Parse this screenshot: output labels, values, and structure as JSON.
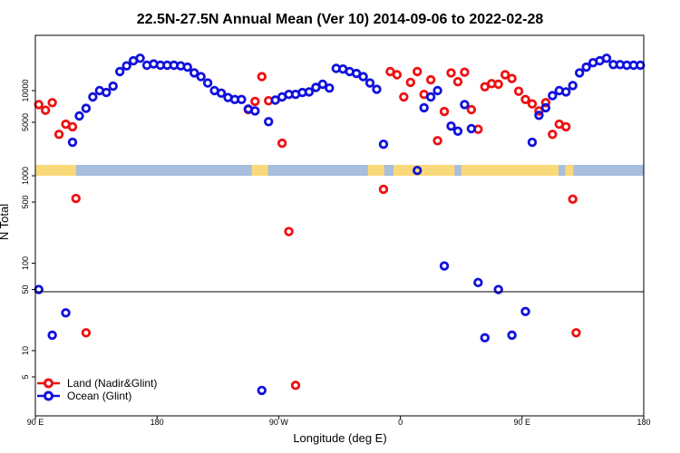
{
  "chart_data": {
    "type": "scatter",
    "title": "22.5N-27.5N Annual Mean (Ver 10)   2014-09-06 to 2022-02-28",
    "xlabel": "Longitude (deg E)",
    "ylabel": "N Total",
    "x_ticks": [
      {
        "value": 90,
        "label": "90 E"
      },
      {
        "value": 180,
        "label": "180"
      },
      {
        "value": 270,
        "label": "90 W"
      },
      {
        "value": 360,
        "label": "0"
      },
      {
        "value": 450,
        "label": "90 E"
      },
      {
        "value": 540,
        "label": "180"
      }
    ],
    "xlim": [
      90,
      540
    ],
    "y_ticks_upper": [
      "5000",
      "10000"
    ],
    "y_ticks_lower": [
      "5",
      "10",
      "50",
      "100",
      "500",
      "1000"
    ],
    "colors": {
      "land": "#ee1111",
      "ocean": "#1111dd",
      "map_ocean": "#a8bedd",
      "map_land": "#fbd97a"
    },
    "grid": false,
    "legend_position": "bottom-left",
    "series": [
      {
        "name": "Land (Nadir&Glint)",
        "color": "#ee1111",
        "points": [
          [
            92.5,
            7800
          ],
          [
            97.5,
            6900
          ],
          [
            102.5,
            8100
          ],
          [
            107.5,
            3100
          ],
          [
            112.5,
            4700
          ],
          [
            117.5,
            4300
          ],
          [
            120,
            550
          ],
          [
            127.5,
            16
          ],
          [
            247.5,
            7000
          ],
          [
            252.5,
            8300
          ],
          [
            257.5,
            12200
          ],
          [
            262.5,
            8400
          ],
          [
            272.5,
            1700
          ],
          [
            277.5,
            230
          ],
          [
            282.5,
            4
          ],
          [
            347.5,
            700
          ],
          [
            352.5,
            13000
          ],
          [
            357.5,
            12500
          ],
          [
            362.5,
            9000
          ],
          [
            367.5,
            11300
          ],
          [
            372.5,
            13000
          ],
          [
            377.5,
            9400
          ],
          [
            382.5,
            11700
          ],
          [
            387.5,
            2100
          ],
          [
            392.5,
            6700
          ],
          [
            397.5,
            12800
          ],
          [
            402.5,
            11400
          ],
          [
            407.5,
            12900
          ],
          [
            412.5,
            7000
          ],
          [
            417.5,
            3900
          ],
          [
            422.5,
            10600
          ],
          [
            427.5,
            11100
          ],
          [
            432.5,
            11000
          ],
          [
            437.5,
            12500
          ],
          [
            442.5,
            11900
          ],
          [
            447.5,
            9900
          ],
          [
            452.5,
            8600
          ],
          [
            457.5,
            7900
          ],
          [
            462.5,
            6800
          ],
          [
            467.5,
            8100
          ],
          [
            472.5,
            3100
          ],
          [
            477.5,
            4700
          ],
          [
            482.5,
            4300
          ],
          [
            487.5,
            540
          ],
          [
            490,
            16
          ]
        ]
      },
      {
        "name": "Ocean (Glint)",
        "color": "#1111dd",
        "points": [
          [
            92.5,
            50
          ],
          [
            102.5,
            15
          ],
          [
            112.5,
            27
          ],
          [
            117.5,
            1850
          ],
          [
            122.5,
            6000
          ],
          [
            127.5,
            7200
          ],
          [
            132.5,
            9000
          ],
          [
            137.5,
            10000
          ],
          [
            142.5,
            9700
          ],
          [
            147.5,
            10700
          ],
          [
            152.5,
            13000
          ],
          [
            157.5,
            13900
          ],
          [
            162.5,
            14700
          ],
          [
            167.5,
            15100
          ],
          [
            172.5,
            14000
          ],
          [
            177.5,
            14200
          ],
          [
            182.5,
            14000
          ],
          [
            187.5,
            14000
          ],
          [
            192.5,
            14000
          ],
          [
            197.5,
            13900
          ],
          [
            202.5,
            13700
          ],
          [
            207.5,
            12800
          ],
          [
            212.5,
            12200
          ],
          [
            217.5,
            11200
          ],
          [
            222.5,
            10000
          ],
          [
            227.5,
            9600
          ],
          [
            232.5,
            8900
          ],
          [
            237.5,
            8600
          ],
          [
            242.5,
            8600
          ],
          [
            247.5,
            7100
          ],
          [
            252.5,
            6800
          ],
          [
            257.5,
            3.5
          ],
          [
            262.5,
            5100
          ],
          [
            267.5,
            8500
          ],
          [
            272.5,
            9000
          ],
          [
            277.5,
            9400
          ],
          [
            282.5,
            9400
          ],
          [
            287.5,
            9700
          ],
          [
            292.5,
            9800
          ],
          [
            297.5,
            10500
          ],
          [
            302.5,
            11000
          ],
          [
            307.5,
            10400
          ],
          [
            312.5,
            13500
          ],
          [
            317.5,
            13400
          ],
          [
            322.5,
            13000
          ],
          [
            327.5,
            12700
          ],
          [
            332.5,
            12200
          ],
          [
            337.5,
            11200
          ],
          [
            342.5,
            10200
          ],
          [
            347.5,
            1550
          ],
          [
            372.5,
            1150
          ],
          [
            377.5,
            7300
          ],
          [
            382.5,
            9000
          ],
          [
            387.5,
            10000
          ],
          [
            392.5,
            93
          ],
          [
            397.5,
            4400
          ],
          [
            402.5,
            3600
          ],
          [
            407.5,
            7800
          ],
          [
            412.5,
            4000
          ],
          [
            417.5,
            60
          ],
          [
            422.5,
            14
          ],
          [
            432.5,
            50
          ],
          [
            442.5,
            15
          ],
          [
            452.5,
            28
          ],
          [
            457.5,
            1850
          ],
          [
            462.5,
            6100
          ],
          [
            467.5,
            7300
          ],
          [
            472.5,
            9200
          ],
          [
            477.5,
            10000
          ],
          [
            482.5,
            9800
          ],
          [
            487.5,
            10800
          ],
          [
            492.5,
            12800
          ],
          [
            497.5,
            13700
          ],
          [
            502.5,
            14400
          ],
          [
            507.5,
            14700
          ],
          [
            512.5,
            15100
          ],
          [
            517.5,
            14100
          ],
          [
            522.5,
            14100
          ],
          [
            527.5,
            14000
          ],
          [
            532.5,
            14000
          ],
          [
            537.5,
            14000
          ]
        ]
      }
    ]
  }
}
